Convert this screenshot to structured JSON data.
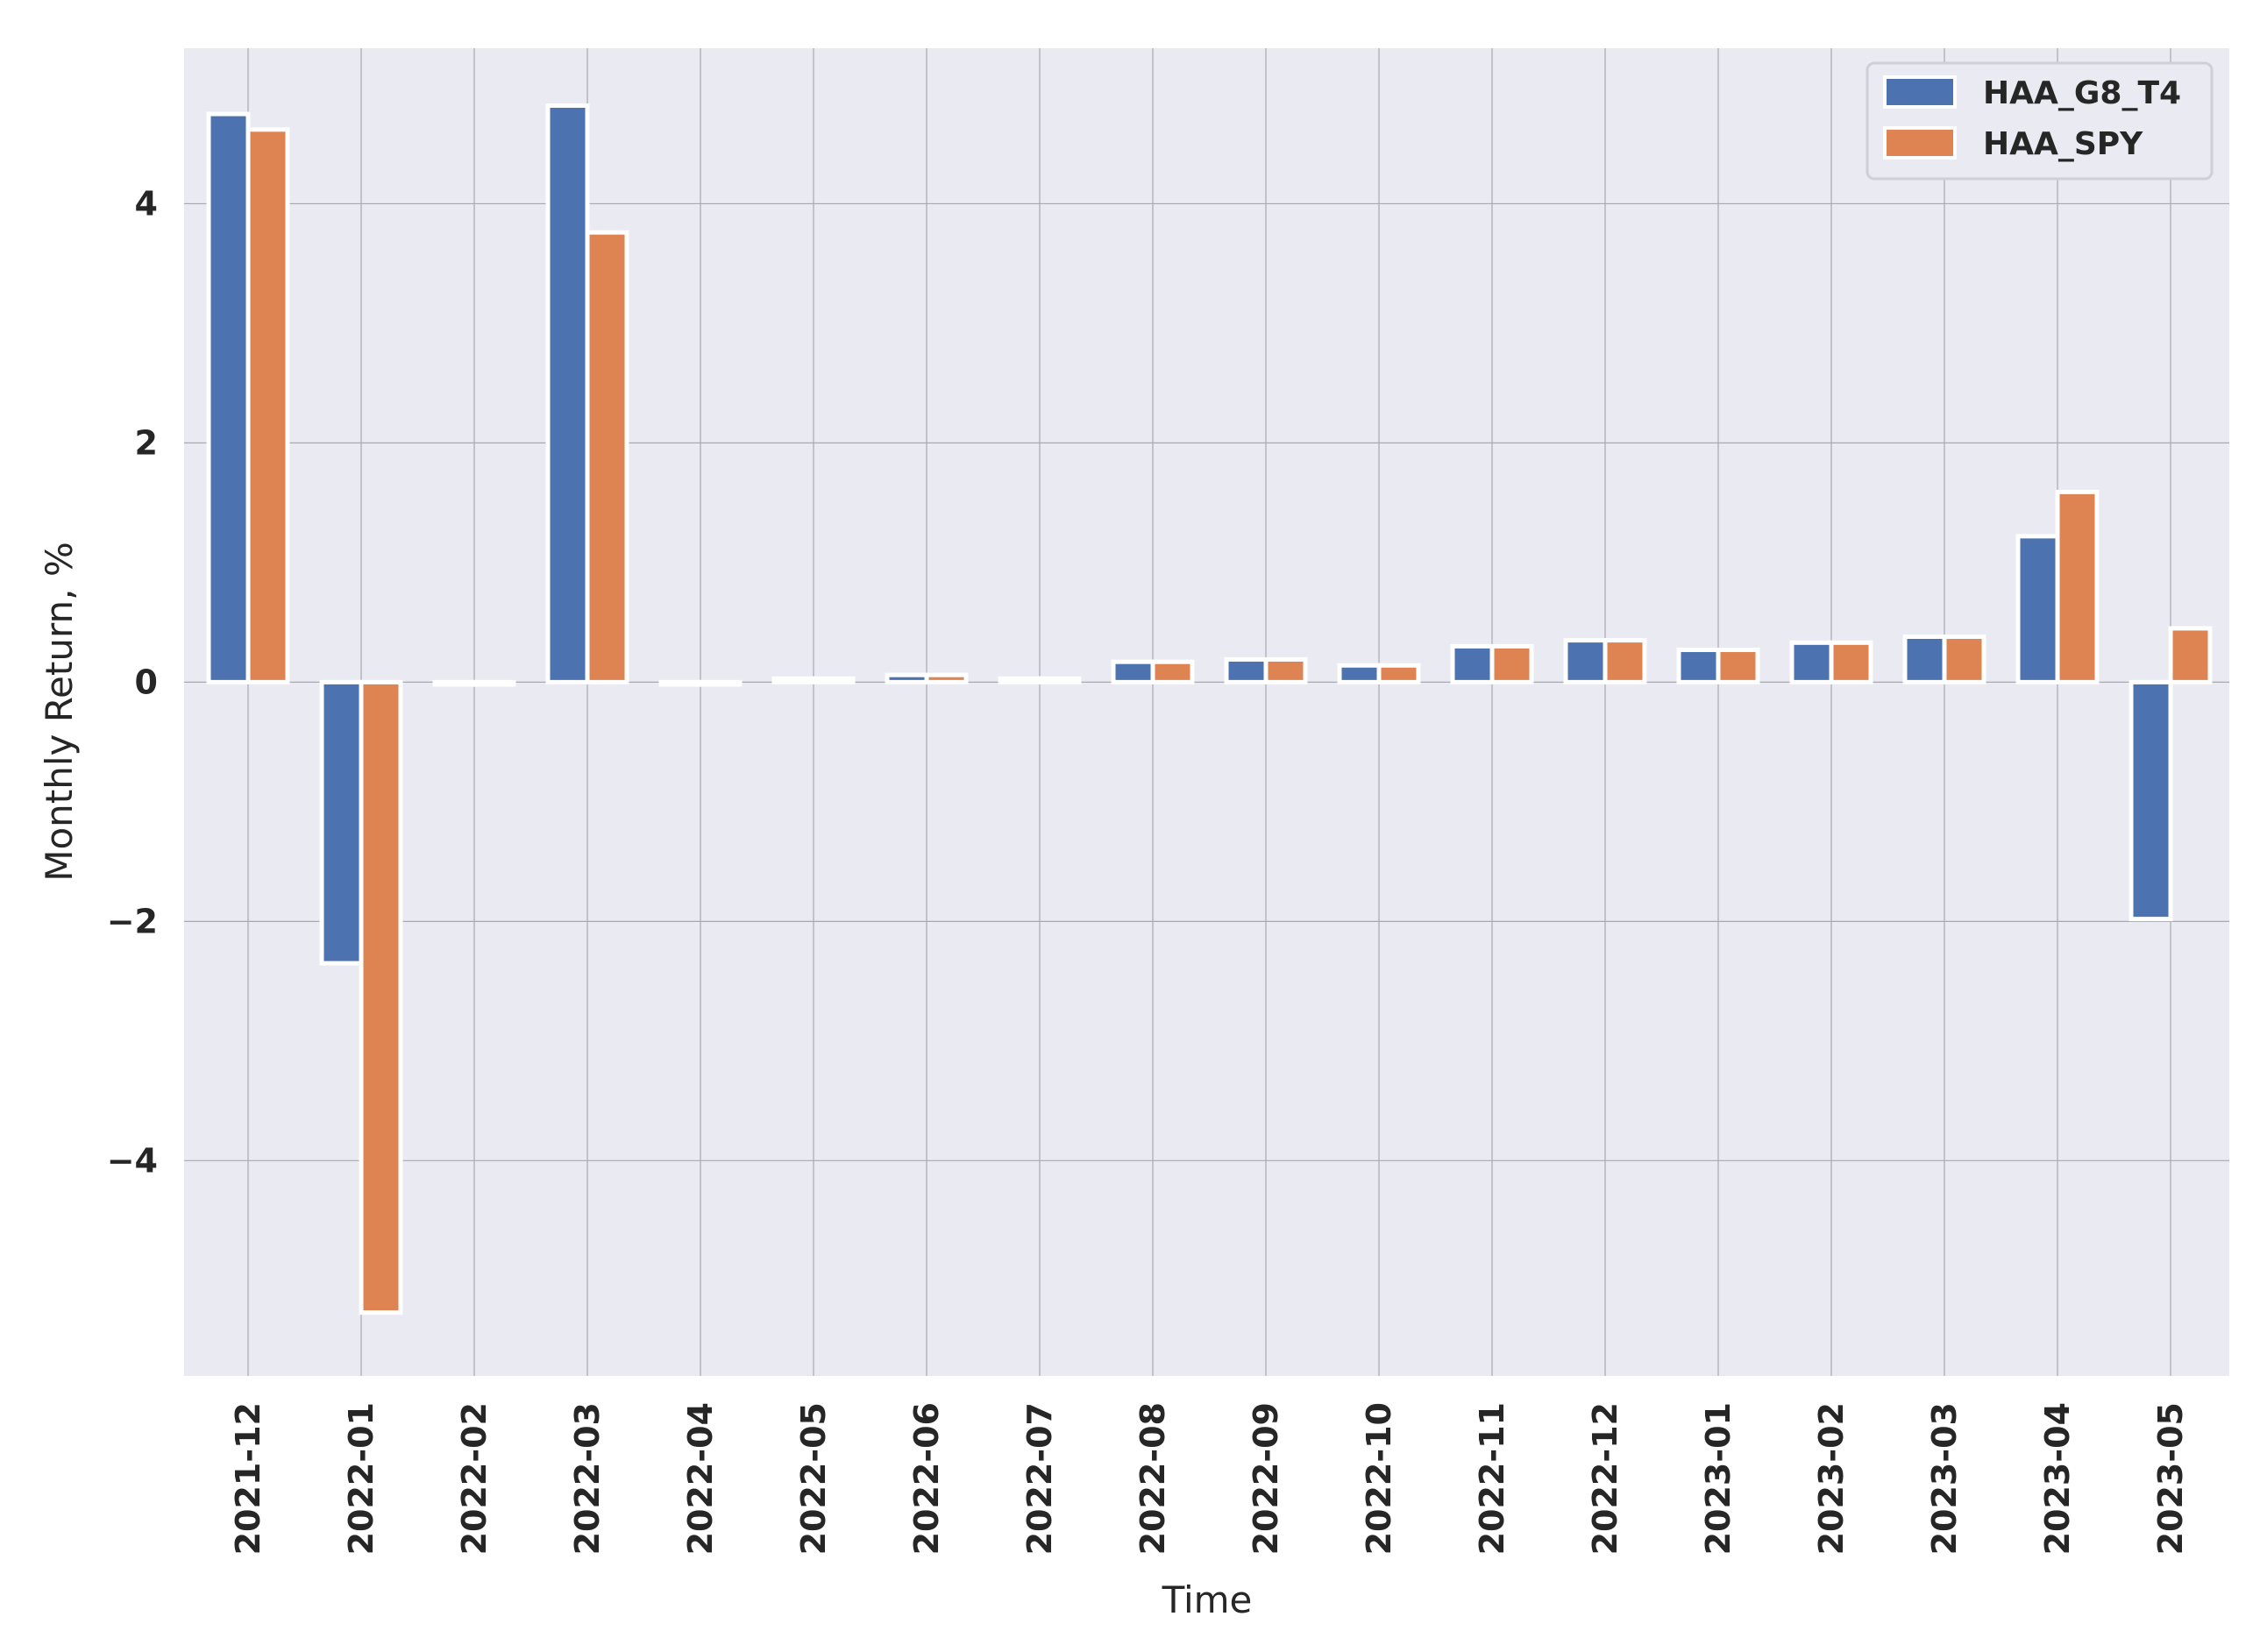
{
  "chart_data": {
    "type": "bar",
    "categories": [
      "2021-12",
      "2022-01",
      "2022-02",
      "2022-03",
      "2022-04",
      "2022-05",
      "2022-06",
      "2022-07",
      "2022-08",
      "2022-09",
      "2022-10",
      "2022-11",
      "2022-12",
      "2023-01",
      "2023-02",
      "2023-03",
      "2023-04",
      "2023-05"
    ],
    "series": [
      {
        "name": "HAA_G8_T4",
        "color": "#4c72b0",
        "values": [
          4.75,
          -2.35,
          -0.02,
          4.82,
          -0.02,
          0.03,
          0.06,
          0.03,
          0.17,
          0.19,
          0.14,
          0.3,
          0.35,
          0.27,
          0.33,
          0.38,
          1.22,
          -1.98
        ]
      },
      {
        "name": "HAA_SPY",
        "color": "#dd8452",
        "values": [
          4.62,
          -5.27,
          -0.02,
          3.76,
          -0.02,
          0.03,
          0.06,
          0.03,
          0.17,
          0.19,
          0.14,
          0.3,
          0.35,
          0.27,
          0.33,
          0.38,
          1.59,
          0.45
        ]
      }
    ],
    "title": "",
    "xlabel": "Time",
    "ylabel": "Monthly Return, %",
    "ylim": [
      -5.8,
      5.3
    ],
    "yticks": [
      4,
      2,
      0,
      -2,
      -4
    ],
    "ytick_labels": [
      "4",
      "2",
      "0",
      "−2",
      "−4"
    ],
    "grid": true,
    "legend": "top-right",
    "background": "#eaeaf2"
  }
}
